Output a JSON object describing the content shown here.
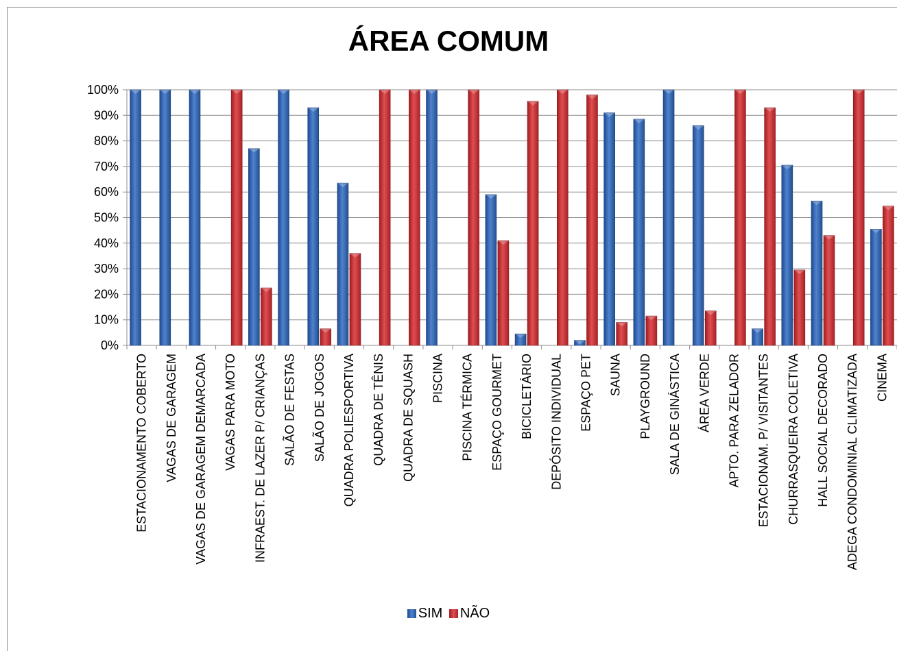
{
  "chart_data": {
    "type": "bar",
    "title": "ÁREA COMUM",
    "ylim": [
      0,
      100
    ],
    "y_ticks": [
      "0%",
      "10%",
      "20%",
      "30%",
      "40%",
      "50%",
      "60%",
      "70%",
      "80%",
      "90%",
      "100%"
    ],
    "grid": true,
    "legend_position": "bottom",
    "categories": [
      "ESTACIONAMENTO COBERTO",
      "VAGAS DE GARAGEM",
      "VAGAS DE GARAGEM DEMARCADA",
      "VAGAS PARA MOTO",
      "INFRAEST. DE LAZER P/ CRIANÇAS",
      "SALÃO DE FESTAS",
      "SALÃO DE JOGOS",
      "QUADRA POLIESPORTIVA",
      "QUADRA DE TÊNIS",
      "QUADRA DE SQUASH",
      "PISCINA",
      "PISCINA TÉRMICA",
      "ESPAÇO GOURMET",
      "BICICLETÁRIO",
      "DEPÓSITO INDIVIDUAL",
      "ESPAÇO PET",
      "SAUNA",
      "PLAYGROUND",
      "SALA DE GINÁSTICA",
      "ÁREA VERDE",
      "APTO. PARA ZELADOR",
      "ESTACIONAM. P/ VISITANTES",
      "CHURRASQUEIRA COLETIVA",
      "HALL SOCIAL DECORADO",
      "ADEGA CONDOMINIAL CLIMATIZADA",
      "CINEMA"
    ],
    "series": [
      {
        "name": "SIM",
        "color": "#2e5fae",
        "values": [
          100,
          100,
          100,
          0,
          77,
          100,
          93,
          63.5,
          0,
          0,
          100,
          0,
          59,
          4.5,
          0,
          2,
          91,
          88.5,
          100,
          86,
          0,
          6.5,
          70.5,
          56.5,
          0,
          45.5
        ]
      },
      {
        "name": "NÃO",
        "color": "#c0282c",
        "values": [
          0,
          0,
          0,
          100,
          22.5,
          0,
          6.5,
          36,
          100,
          100,
          0,
          100,
          41,
          95.5,
          100,
          98,
          9,
          11.5,
          0,
          13.5,
          100,
          93,
          29.5,
          43,
          100,
          54.5
        ]
      }
    ]
  }
}
